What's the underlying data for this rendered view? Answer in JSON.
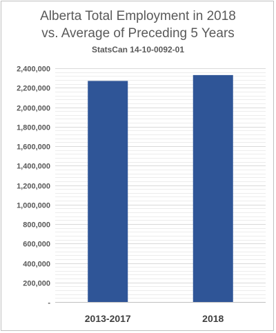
{
  "chart_data": {
    "type": "bar",
    "title_lines": [
      "Alberta Total Employment in 2018",
      "vs. Average of Preceding 5 Years"
    ],
    "subtitle": "StatsCan 14-10-0092-01",
    "categories": [
      "2013-2017",
      "2018"
    ],
    "values": [
      2270000,
      2330000
    ],
    "ylim": [
      0,
      2400000
    ],
    "ytick_labels": [
      "-",
      "200,000",
      "400,000",
      "600,000",
      "800,000",
      "1,000,000",
      "1,200,000",
      "1,400,000",
      "1,600,000",
      "1,800,000",
      "2,000,000",
      "2,200,000",
      "2,400,000"
    ],
    "ytick_step": 200000,
    "grid": true,
    "legend": "none",
    "bar_color": "#2f5597",
    "grid_color": "#d9d9d9"
  }
}
